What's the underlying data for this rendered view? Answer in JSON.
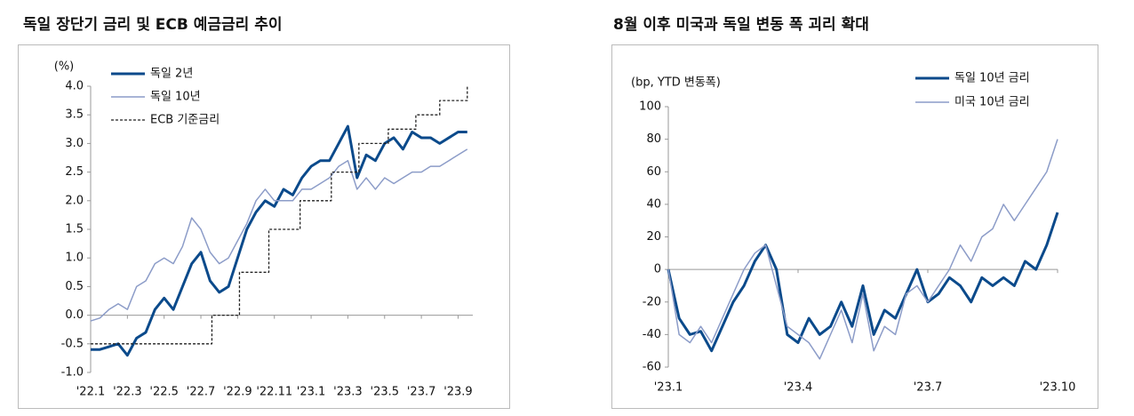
{
  "chart_data": [
    {
      "type": "line",
      "title": "독일 장단기 금리 및 ECB 예금금리 추이",
      "y_label": "(%)",
      "x": [
        0,
        0.5,
        1,
        1.5,
        2,
        2.5,
        3,
        3.5,
        4,
        4.5,
        5,
        5.5,
        6,
        6.5,
        7,
        7.5,
        8,
        8.5,
        9,
        9.5,
        10,
        10.5,
        11,
        11.5,
        12,
        12.5,
        13,
        13.5,
        14,
        14.5,
        15,
        15.5,
        16,
        16.5,
        17,
        17.5,
        18,
        18.5,
        19,
        19.5,
        20,
        20.5
      ],
      "xlim": [
        0,
        20.8
      ],
      "xticks": [
        {
          "value": 0,
          "label": "'22.1"
        },
        {
          "value": 2,
          "label": "'22.3"
        },
        {
          "value": 4,
          "label": "'22.5"
        },
        {
          "value": 6,
          "label": "'22.7"
        },
        {
          "value": 8,
          "label": "'22.9"
        },
        {
          "value": 10,
          "label": "'22.11"
        },
        {
          "value": 12,
          "label": "'23.1"
        },
        {
          "value": 14,
          "label": "'23.3"
        },
        {
          "value": 16,
          "label": "'23.5"
        },
        {
          "value": 18,
          "label": "'23.7"
        },
        {
          "value": 20,
          "label": "'23.9"
        }
      ],
      "ylim": [
        -1,
        4
      ],
      "yticks": [
        {
          "value": 4,
          "label": "4.0"
        },
        3.5,
        {
          "value": 3,
          "label": "3.0"
        },
        2.5,
        {
          "value": 2,
          "label": "2.0"
        },
        1.5,
        {
          "value": 1,
          "label": "1.0"
        },
        0.5,
        {
          "value": 0,
          "label": "0.0"
        },
        -0.5,
        {
          "value": -1,
          "label": "-1.0"
        }
      ],
      "series": [
        {
          "name": "독일 2년",
          "color": "#0b4a8b",
          "width": 3,
          "values": [
            -0.6,
            -0.6,
            -0.55,
            -0.5,
            -0.7,
            -0.4,
            -0.3,
            0.1,
            0.3,
            0.1,
            0.5,
            0.9,
            1.1,
            0.6,
            0.4,
            0.5,
            1.0,
            1.5,
            1.8,
            2.0,
            1.9,
            2.2,
            2.1,
            2.4,
            2.6,
            2.7,
            2.7,
            3.0,
            3.3,
            2.4,
            2.8,
            2.7,
            3.0,
            3.1,
            2.9,
            3.2,
            3.1,
            3.1,
            3.0,
            3.1,
            3.2,
            3.2
          ]
        },
        {
          "name": "독일 10년",
          "color": "#8c9cc8",
          "width": 1.5,
          "values": [
            -0.1,
            -0.05,
            0.1,
            0.2,
            0.1,
            0.5,
            0.6,
            0.9,
            1.0,
            0.9,
            1.2,
            1.7,
            1.5,
            1.1,
            0.9,
            1.0,
            1.3,
            1.6,
            2.0,
            2.2,
            2.0,
            2.0,
            2.0,
            2.2,
            2.2,
            2.3,
            2.4,
            2.6,
            2.7,
            2.2,
            2.4,
            2.2,
            2.4,
            2.3,
            2.4,
            2.5,
            2.5,
            2.6,
            2.6,
            2.7,
            2.8,
            2.9
          ]
        },
        {
          "name": "ECB 기준금리",
          "color": "#222222",
          "width": 1.3,
          "dash": true,
          "step": true,
          "x": [
            0,
            6.6,
            8.1,
            9.7,
            11.4,
            13.1,
            14.6,
            16.2,
            17.7,
            19.0,
            20.5
          ],
          "values": [
            -0.5,
            0,
            0.75,
            1.5,
            2.0,
            2.5,
            3.0,
            3.25,
            3.5,
            3.75,
            4.0
          ]
        }
      ]
    },
    {
      "type": "line",
      "title": "8월 이후 미국과 독일 변동 폭 괴리 확대",
      "y_label": "(bp, YTD 변동폭)",
      "x": [
        0,
        0.25,
        0.5,
        0.75,
        1,
        1.25,
        1.5,
        1.75,
        2,
        2.25,
        2.5,
        2.75,
        3,
        3.25,
        3.5,
        3.75,
        4,
        4.25,
        4.5,
        4.75,
        5,
        5.25,
        5.5,
        5.75,
        6,
        6.25,
        6.5,
        6.75,
        7,
        7.25,
        7.5,
        7.75,
        8,
        8.25,
        8.5,
        8.75,
        9
      ],
      "xlim": [
        0,
        9
      ],
      "xticks": [
        {
          "value": 0,
          "label": "'23.1"
        },
        {
          "value": 3,
          "label": "'23.4"
        },
        {
          "value": 6,
          "label": "'23.7"
        },
        {
          "value": 9,
          "label": "'23.10"
        }
      ],
      "ylim": [
        -60,
        100
      ],
      "yticks": [
        100,
        80,
        60,
        40,
        20,
        0,
        -20,
        -40,
        -60
      ],
      "series": [
        {
          "name": "독일 10년 금리",
          "color": "#0b4a8b",
          "width": 3,
          "values": [
            0,
            -30,
            -40,
            -38,
            -50,
            -35,
            -20,
            -10,
            5,
            15,
            0,
            -40,
            -45,
            -30,
            -40,
            -35,
            -20,
            -35,
            -10,
            -40,
            -25,
            -30,
            -15,
            0,
            -20,
            -15,
            -5,
            -10,
            -20,
            -5,
            -10,
            -5,
            -10,
            5,
            0,
            15,
            35
          ]
        },
        {
          "name": "미국 10년 금리",
          "color": "#8c9cc8",
          "width": 1.5,
          "values": [
            0,
            -40,
            -45,
            -35,
            -45,
            -30,
            -15,
            0,
            10,
            15,
            -10,
            -35,
            -40,
            -45,
            -55,
            -40,
            -25,
            -45,
            -15,
            -50,
            -35,
            -40,
            -15,
            -10,
            -20,
            -10,
            0,
            15,
            5,
            20,
            25,
            40,
            30,
            40,
            50,
            60,
            80
          ]
        }
      ]
    }
  ]
}
